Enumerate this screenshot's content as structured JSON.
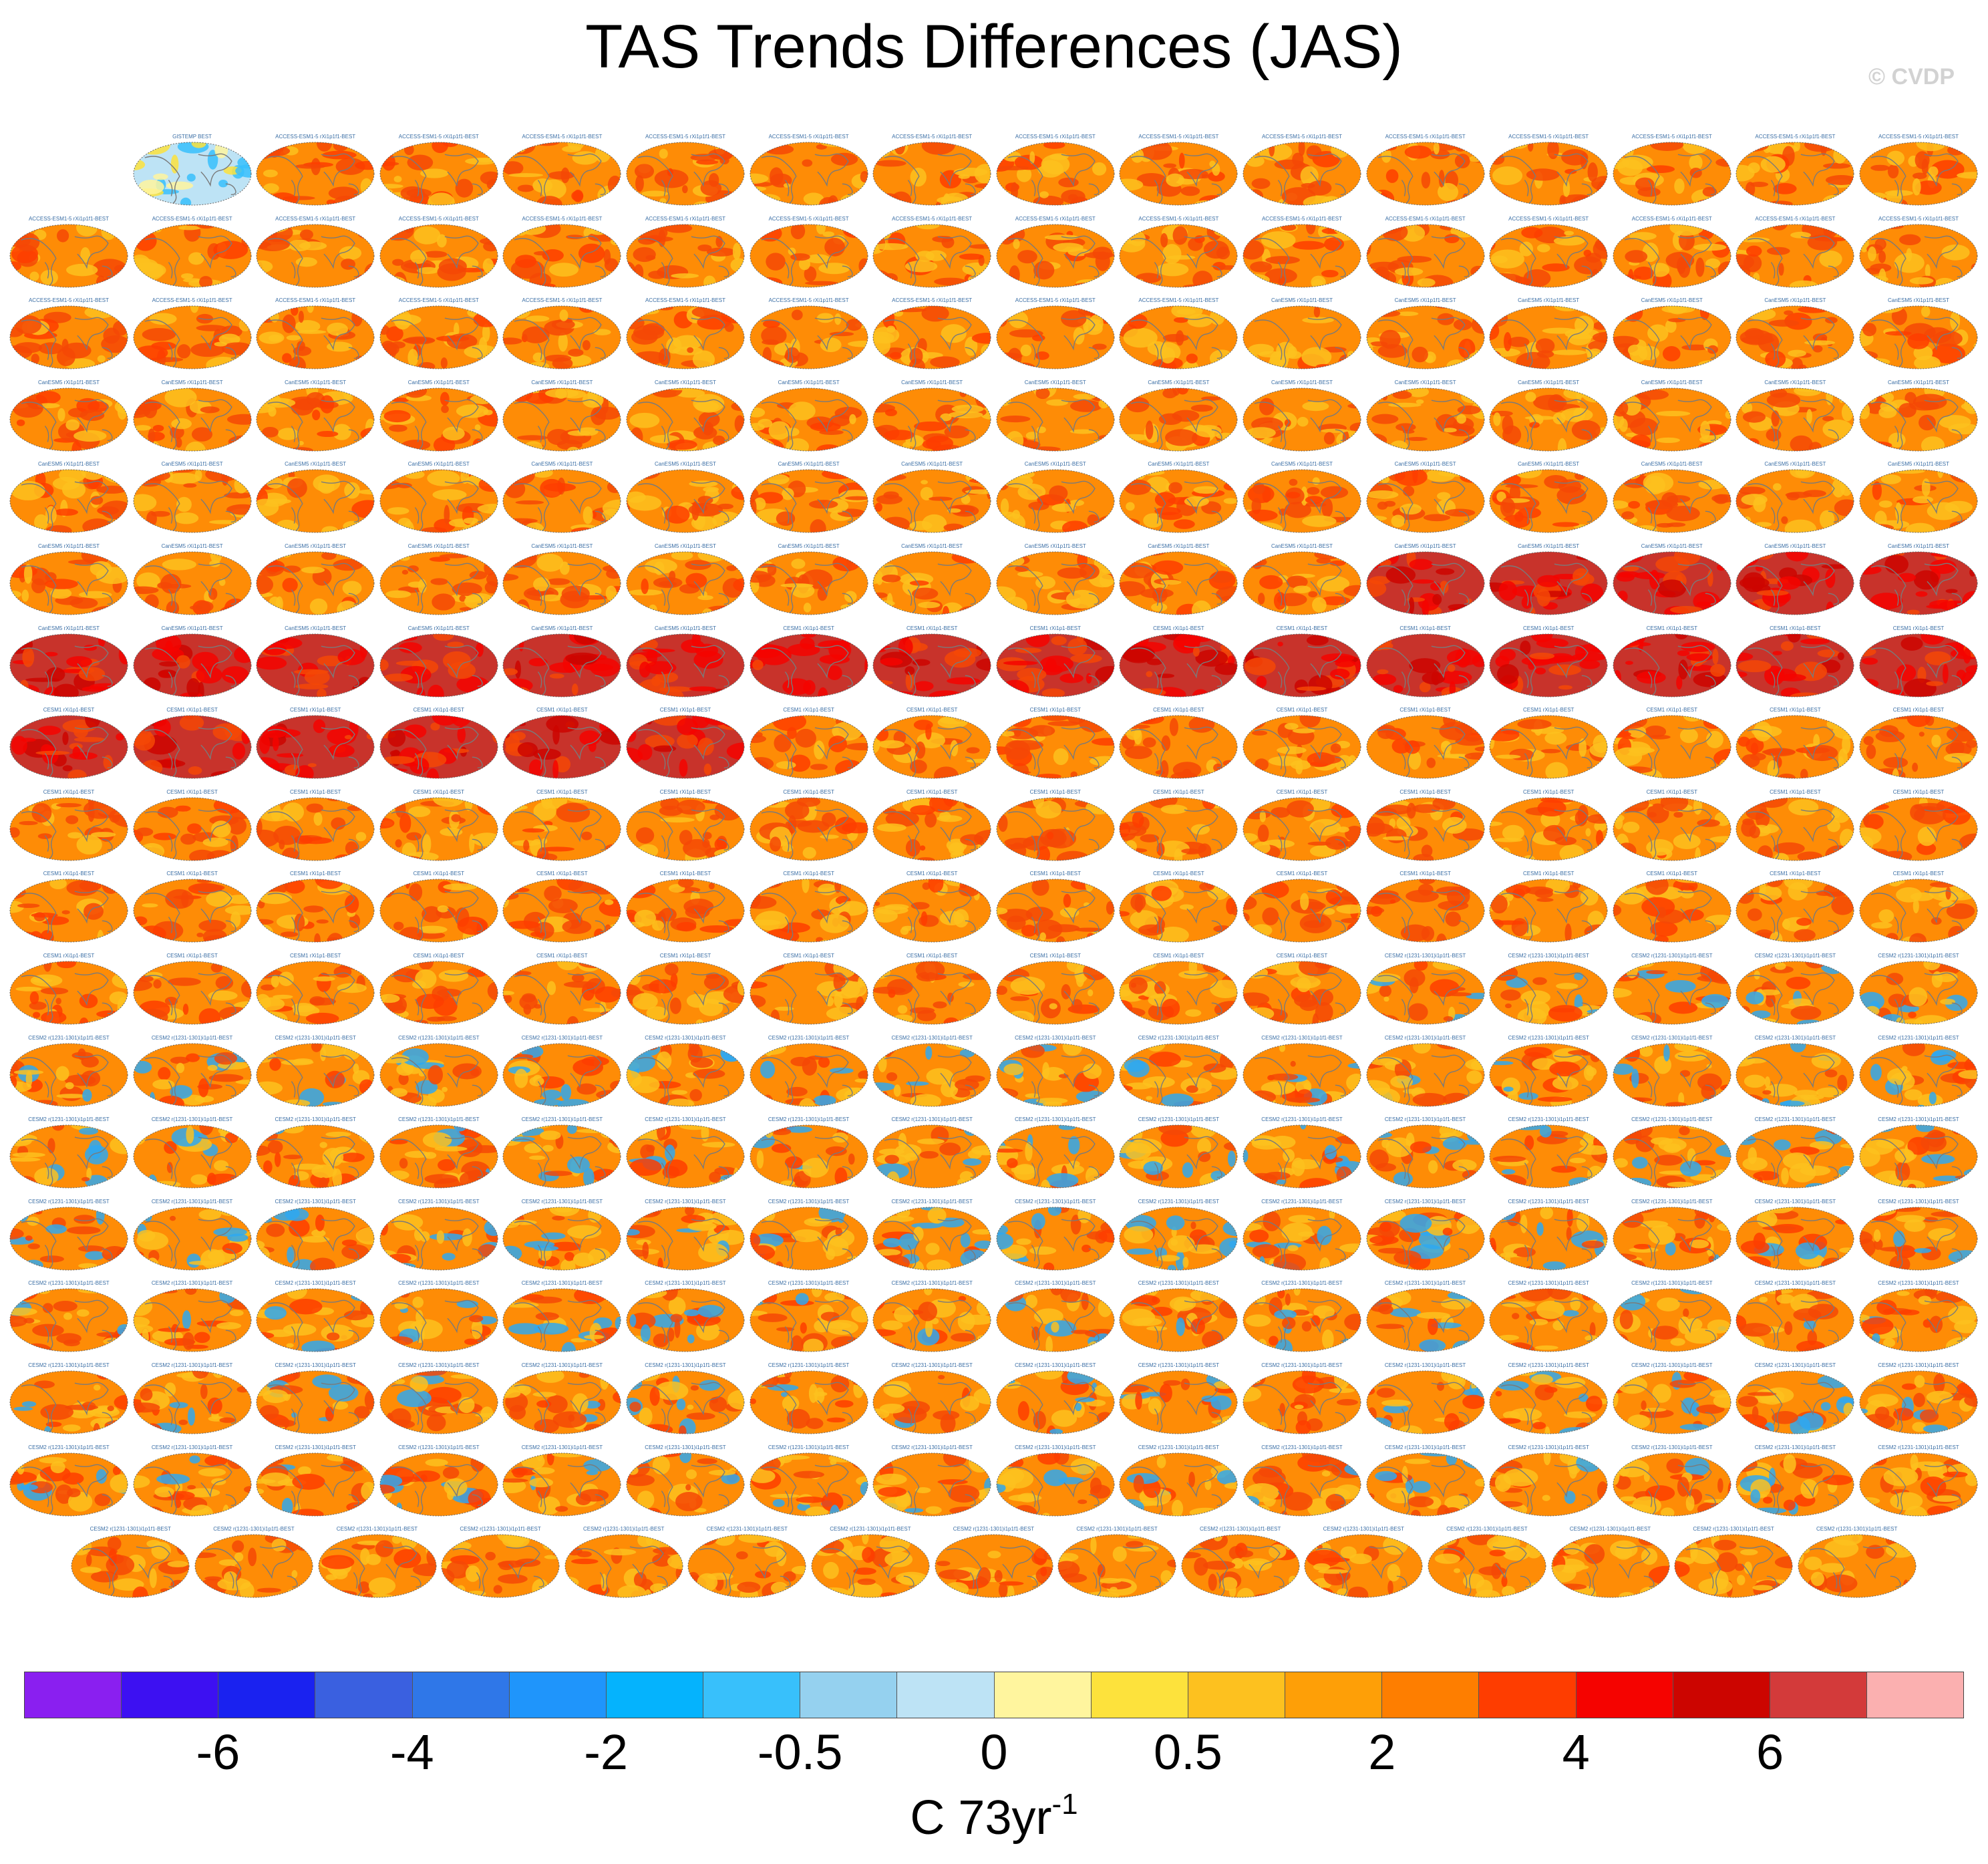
{
  "title": "TAS Trends Differences (JAS)",
  "watermark": "© CVDP",
  "chart_data": {
    "type": "heatmap",
    "description_type": "panel-grid",
    "title": "TAS Trends Differences (JAS)",
    "grid": {
      "rows": 18,
      "cols": 16,
      "last_row_count": 15,
      "first_row_offset": 1
    },
    "first_panel_label": "GISTEMP BEST",
    "panel_label_groups": [
      "ACCESS-ESM1-5 rXi1p1f1-BEST",
      "CanESM5 rXi1p1f1-BEST",
      "CESM1 rXi1p1-BEST",
      "CESM2 r(1231-1301)i1p1f1-BEST"
    ],
    "colorbar": {
      "colors": [
        "#8a1ff0",
        "#3d10f2",
        "#1a22f0",
        "#3a60e0",
        "#2f77e8",
        "#1f95fb",
        "#05b3fd",
        "#38c0fb",
        "#95d1ef",
        "#bde3f5",
        "#fff59e",
        "#fde23c",
        "#fdc11f",
        "#fe9f07",
        "#fe7e00",
        "#fe3d00",
        "#f50300",
        "#cc0500",
        "#d33a3a",
        "#fbb0b0"
      ],
      "tick_labels": [
        "-6",
        "-4",
        "-2",
        "-0.5",
        "0",
        "0.5",
        "2",
        "4",
        "6"
      ],
      "units": "C 73yr",
      "units_exponent": "-1"
    },
    "panel_style_colors": {
      "base": "#fe8c06",
      "hot": "#f54806",
      "cold": "#2fa8f0",
      "very_hot": "#c8332b",
      "land_outline": "#7a7a7a"
    }
  }
}
